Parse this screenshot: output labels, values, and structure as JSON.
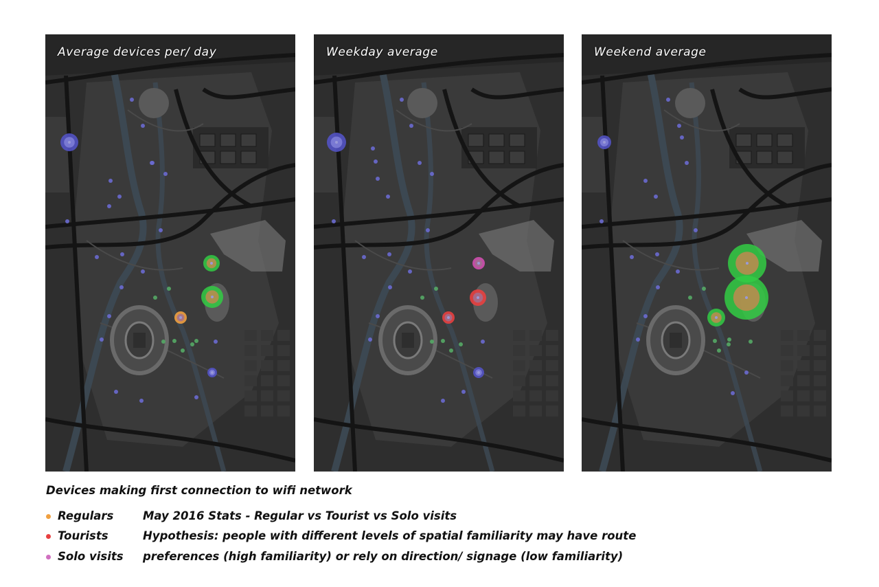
{
  "panels": [
    {
      "title": "Average devices per/ day",
      "markers": [
        {
          "type": "blue",
          "x": 35,
          "y": 157,
          "r": 13
        },
        {
          "type": "green",
          "x": 242,
          "y": 333,
          "r": 12
        },
        {
          "type": "green",
          "x": 243,
          "y": 382,
          "r": 16
        },
        {
          "type": "orange",
          "x": 197,
          "y": 412,
          "r": 9
        },
        {
          "type": "blue",
          "x": 243,
          "y": 492,
          "r": 7
        },
        {
          "type": "dot_blue",
          "x": 126,
          "y": 95
        },
        {
          "type": "dot_blue",
          "x": 142,
          "y": 133
        },
        {
          "type": "dot_blue",
          "x": 156,
          "y": 187
        },
        {
          "type": "dot_blue",
          "x": 175,
          "y": 203
        },
        {
          "type": "dot_blue",
          "x": 155,
          "y": 187
        },
        {
          "type": "dot_blue",
          "x": 95,
          "y": 213
        },
        {
          "type": "dot_blue",
          "x": 108,
          "y": 236
        },
        {
          "type": "dot_blue",
          "x": 93,
          "y": 250
        },
        {
          "type": "dot_blue",
          "x": 32,
          "y": 272
        },
        {
          "type": "dot_blue",
          "x": 168,
          "y": 285
        },
        {
          "type": "dot_blue",
          "x": 75,
          "y": 324
        },
        {
          "type": "dot_blue",
          "x": 112,
          "y": 320
        },
        {
          "type": "dot_blue",
          "x": 142,
          "y": 345
        },
        {
          "type": "dot_blue",
          "x": 111,
          "y": 368
        },
        {
          "type": "dot_blue",
          "x": 93,
          "y": 410
        },
        {
          "type": "dot_blue",
          "x": 82,
          "y": 444
        },
        {
          "type": "dot_blue",
          "x": 103,
          "y": 520
        },
        {
          "type": "dot_blue",
          "x": 140,
          "y": 533
        },
        {
          "type": "dot_blue",
          "x": 220,
          "y": 528
        },
        {
          "type": "dot_green",
          "x": 160,
          "y": 383
        },
        {
          "type": "dot_green",
          "x": 180,
          "y": 370
        },
        {
          "type": "dot_green",
          "x": 172,
          "y": 447
        },
        {
          "type": "dot_green",
          "x": 188,
          "y": 446
        },
        {
          "type": "dot_green",
          "x": 200,
          "y": 460
        },
        {
          "type": "dot_green",
          "x": 214,
          "y": 451
        },
        {
          "type": "dot_green",
          "x": 220,
          "y": 446
        },
        {
          "type": "dot_blue",
          "x": 248,
          "y": 447
        }
      ]
    },
    {
      "title": "Weekday average",
      "markers": [
        {
          "type": "blue",
          "x": 33,
          "y": 157,
          "r": 14
        },
        {
          "type": "pink",
          "x": 240,
          "y": 333,
          "r": 9
        },
        {
          "type": "red",
          "x": 239,
          "y": 383,
          "r": 12
        },
        {
          "type": "red",
          "x": 196,
          "y": 412,
          "r": 9
        },
        {
          "type": "blue",
          "x": 240,
          "y": 492,
          "r": 8
        },
        {
          "type": "dot_blue",
          "x": 128,
          "y": 95
        },
        {
          "type": "dot_blue",
          "x": 142,
          "y": 133
        },
        {
          "type": "dot_blue",
          "x": 154,
          "y": 187
        },
        {
          "type": "dot_blue",
          "x": 172,
          "y": 203
        },
        {
          "type": "dot_blue",
          "x": 86,
          "y": 166
        },
        {
          "type": "dot_blue",
          "x": 90,
          "y": 185
        },
        {
          "type": "dot_blue",
          "x": 108,
          "y": 236
        },
        {
          "type": "dot_blue",
          "x": 93,
          "y": 210
        },
        {
          "type": "dot_blue",
          "x": 29,
          "y": 272
        },
        {
          "type": "dot_blue",
          "x": 166,
          "y": 285
        },
        {
          "type": "dot_blue",
          "x": 73,
          "y": 324
        },
        {
          "type": "dot_blue",
          "x": 110,
          "y": 320
        },
        {
          "type": "dot_blue",
          "x": 140,
          "y": 345
        },
        {
          "type": "dot_blue",
          "x": 111,
          "y": 368
        },
        {
          "type": "dot_blue",
          "x": 93,
          "y": 410
        },
        {
          "type": "dot_blue",
          "x": 82,
          "y": 444
        },
        {
          "type": "dot_blue",
          "x": 188,
          "y": 533
        },
        {
          "type": "dot_blue",
          "x": 218,
          "y": 520
        },
        {
          "type": "dot_green",
          "x": 158,
          "y": 383
        },
        {
          "type": "dot_green",
          "x": 178,
          "y": 370
        },
        {
          "type": "dot_green",
          "x": 172,
          "y": 447
        },
        {
          "type": "dot_green",
          "x": 188,
          "y": 446
        },
        {
          "type": "dot_green",
          "x": 200,
          "y": 460
        },
        {
          "type": "dot_green",
          "x": 214,
          "y": 451
        },
        {
          "type": "dot_blue",
          "x": 246,
          "y": 447
        }
      ]
    },
    {
      "title": "Weekend average",
      "markers": [
        {
          "type": "blue",
          "x": 33,
          "y": 157,
          "r": 10
        },
        {
          "type": "green",
          "x": 241,
          "y": 333,
          "r": 28
        },
        {
          "type": "green",
          "x": 240,
          "y": 383,
          "r": 32
        },
        {
          "type": "green",
          "x": 196,
          "y": 412,
          "r": 13
        },
        {
          "type": "dot_blue",
          "x": 126,
          "y": 95
        },
        {
          "type": "dot_blue",
          "x": 142,
          "y": 133
        },
        {
          "type": "dot_blue",
          "x": 153,
          "y": 187
        },
        {
          "type": "dot_blue",
          "x": 146,
          "y": 150
        },
        {
          "type": "dot_blue",
          "x": 93,
          "y": 213
        },
        {
          "type": "dot_blue",
          "x": 108,
          "y": 236
        },
        {
          "type": "dot_blue",
          "x": 29,
          "y": 272
        },
        {
          "type": "dot_blue",
          "x": 166,
          "y": 285
        },
        {
          "type": "dot_blue",
          "x": 73,
          "y": 324
        },
        {
          "type": "dot_blue",
          "x": 110,
          "y": 320
        },
        {
          "type": "dot_blue",
          "x": 140,
          "y": 345
        },
        {
          "type": "dot_blue",
          "x": 111,
          "y": 368
        },
        {
          "type": "dot_blue",
          "x": 93,
          "y": 410
        },
        {
          "type": "dot_blue",
          "x": 82,
          "y": 444
        },
        {
          "type": "dot_blue",
          "x": 240,
          "y": 492
        },
        {
          "type": "dot_blue",
          "x": 220,
          "y": 522
        },
        {
          "type": "dot_green",
          "x": 158,
          "y": 383
        },
        {
          "type": "dot_green",
          "x": 178,
          "y": 370
        },
        {
          "type": "dot_green",
          "x": 194,
          "y": 446
        },
        {
          "type": "dot_green",
          "x": 200,
          "y": 460
        },
        {
          "type": "dot_green",
          "x": 214,
          "y": 451
        },
        {
          "type": "dot_green",
          "x": 246,
          "y": 447
        },
        {
          "type": "dot_green",
          "x": 215,
          "y": 444
        }
      ]
    }
  ],
  "caption": "Devices making first connection to wifi network",
  "legend": [
    {
      "label": "Regulars",
      "color": "#f0a040",
      "text": "May 2016 Stats - Regular vs Tourist vs Solo visits"
    },
    {
      "label": "Tourists",
      "color": "#e84040",
      "text": "Hypothesis: people with different levels of spatial familiarity may have route"
    },
    {
      "label": "Solo visits",
      "color": "#d070c0",
      "text": "preferences (high familiarity) or rely on direction/ signage (low familiarity)"
    }
  ],
  "colors": {
    "background": "#2e2e2e",
    "park": "#3a3a3a",
    "road": "#141414",
    "water": "#3d4a55",
    "building": "#555555",
    "stadium": "#6e6e6e",
    "blue_marker": "#5555cc",
    "green_marker": "#33cc44",
    "orange_marker": "#f0a040",
    "red_marker": "#e84040",
    "pink_marker": "#d050b0"
  }
}
